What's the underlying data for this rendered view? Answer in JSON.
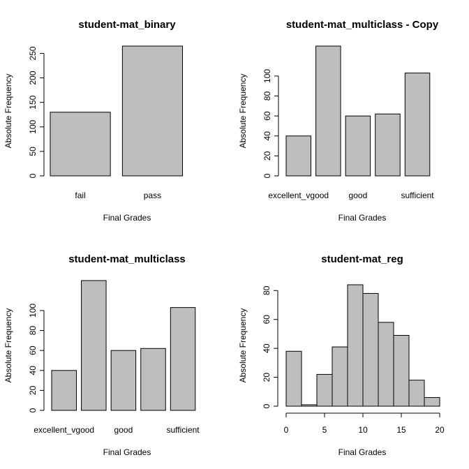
{
  "chart_data": [
    {
      "type": "bar",
      "title": "student-mat_binary",
      "xlabel": "Final Grades",
      "ylabel": "Absolute Frequency",
      "categories": [
        "fail",
        "pass"
      ],
      "category_labels": [
        "fail",
        "pass"
      ],
      "values": [
        130,
        265
      ],
      "yticks": [
        0,
        50,
        100,
        150,
        200,
        250
      ],
      "ylim": [
        0,
        265
      ]
    },
    {
      "type": "bar",
      "title": "student-mat_multiclass - Copy",
      "xlabel": "Final Grades",
      "ylabel": "Absolute Frequency",
      "categories": [
        "excellent_vgood",
        "",
        "good",
        "",
        "sufficient"
      ],
      "category_labels": [
        "excellent_vgood",
        "good",
        "sufficient"
      ],
      "values": [
        40,
        130,
        60,
        62,
        103
      ],
      "yticks": [
        0,
        20,
        40,
        60,
        80,
        100
      ],
      "ylim": [
        0,
        130
      ]
    },
    {
      "type": "bar",
      "title": "student-mat_multiclass",
      "xlabel": "Final Grades",
      "ylabel": "Absolute Frequency",
      "categories": [
        "excellent_vgood",
        "",
        "good",
        "",
        "sufficient"
      ],
      "category_labels": [
        "excellent_vgood",
        "good",
        "sufficient"
      ],
      "values": [
        40,
        130,
        60,
        62,
        103
      ],
      "yticks": [
        0,
        20,
        40,
        60,
        80,
        100
      ],
      "ylim": [
        0,
        130
      ]
    },
    {
      "type": "histogram",
      "title": "student-mat_reg",
      "xlabel": "Final Grades",
      "ylabel": "Absolute Frequency",
      "bin_edges": [
        0,
        2,
        4,
        6,
        8,
        10,
        12,
        14,
        16,
        18,
        20
      ],
      "values": [
        38,
        1,
        22,
        41,
        84,
        78,
        58,
        49,
        18,
        6
      ],
      "yticks": [
        0,
        20,
        40,
        60,
        80
      ],
      "xticks": [
        0,
        5,
        10,
        15,
        20
      ],
      "xlim": [
        0,
        20
      ],
      "ylim": [
        0,
        84
      ]
    }
  ]
}
